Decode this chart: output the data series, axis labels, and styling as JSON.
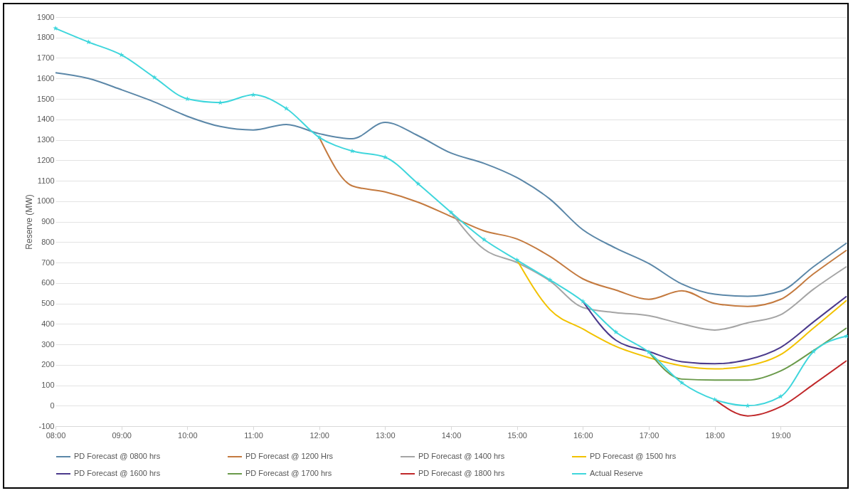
{
  "chart_data": {
    "type": "line",
    "ylabel": "Reserve (MW)",
    "xlim": [
      8,
      20
    ],
    "ylim": [
      -100,
      1900
    ],
    "xticks": [
      {
        "value": 8,
        "label": "08:00"
      },
      {
        "value": 9,
        "label": "09:00"
      },
      {
        "value": 10,
        "label": "10:00"
      },
      {
        "value": 11,
        "label": "11:00"
      },
      {
        "value": 12,
        "label": "12:00"
      },
      {
        "value": 13,
        "label": "13:00"
      },
      {
        "value": 14,
        "label": "14:00"
      },
      {
        "value": 15,
        "label": "15:00"
      },
      {
        "value": 16,
        "label": "16:00"
      },
      {
        "value": 17,
        "label": "17:00"
      },
      {
        "value": 18,
        "label": "18:00"
      },
      {
        "value": 19,
        "label": "19:00"
      }
    ],
    "yticks": [
      -100,
      0,
      100,
      200,
      300,
      400,
      500,
      600,
      700,
      800,
      900,
      1000,
      1100,
      1200,
      1300,
      1400,
      1500,
      1600,
      1700,
      1800,
      1900
    ],
    "grid": "y",
    "legend": "bottom",
    "marker": "none",
    "line_style": "solid",
    "series": [
      {
        "name": "PD Forecast @ 0800 hrs",
        "color": "#5b87a8",
        "x": [
          8,
          8.5,
          9,
          9.5,
          10,
          10.5,
          11,
          11.5,
          12,
          12.5,
          13,
          13.5,
          14,
          14.5,
          15,
          15.5,
          16,
          16.5,
          17,
          17.5,
          18,
          18.5,
          19,
          19.5,
          20
        ],
        "values": [
          1628,
          1600,
          1545,
          1485,
          1415,
          1365,
          1348,
          1375,
          1330,
          1305,
          1385,
          1320,
          1235,
          1185,
          1115,
          1010,
          860,
          770,
          695,
          595,
          545,
          535,
          560,
          680,
          795
        ]
      },
      {
        "name": "PD Forecast @ 1200 Hrs",
        "color": "#c47a3f",
        "x": [
          12,
          12.5,
          13,
          13.5,
          14,
          14.5,
          15,
          15.5,
          16,
          16.5,
          17,
          17.5,
          18,
          18.5,
          19,
          19.5,
          20
        ],
        "values": [
          1312,
          1075,
          1045,
          995,
          925,
          855,
          815,
          730,
          620,
          565,
          520,
          562,
          500,
          485,
          520,
          645,
          760
        ]
      },
      {
        "name": "PD Forecast @ 1400 hrs",
        "color": "#a5a5a5",
        "x": [
          14,
          14.5,
          15,
          15.5,
          16,
          16.5,
          17,
          17.5,
          18,
          18.5,
          19,
          19.5,
          20
        ],
        "values": [
          945,
          765,
          700,
          610,
          480,
          455,
          440,
          400,
          370,
          405,
          445,
          570,
          680
        ]
      },
      {
        "name": "PD Forecast @ 1500 hrs",
        "color": "#f2c200",
        "x": [
          15,
          15.5,
          16,
          16.5,
          17,
          17.5,
          18,
          18.5,
          19,
          19.5,
          20
        ],
        "values": [
          712,
          470,
          375,
          290,
          235,
          195,
          180,
          195,
          250,
          380,
          515
        ]
      },
      {
        "name": "PD Forecast @ 1600 hrs",
        "color": "#4b3a8c",
        "x": [
          16,
          16.5,
          17,
          17.5,
          18,
          18.5,
          19,
          19.5,
          20
        ],
        "values": [
          510,
          320,
          265,
          215,
          205,
          225,
          285,
          410,
          535
        ]
      },
      {
        "name": "PD Forecast @ 1700 hrs",
        "color": "#6a9a4a",
        "x": [
          17,
          17.5,
          18,
          18.5,
          19,
          19.5,
          20
        ],
        "values": [
          262,
          130,
          125,
          125,
          170,
          270,
          380
        ]
      },
      {
        "name": "PD Forecast @ 1800 hrs",
        "color": "#c0282a",
        "x": [
          18,
          18.5,
          19,
          19.5,
          20
        ],
        "values": [
          30,
          -50,
          -5,
          105,
          220
        ]
      },
      {
        "name": "Actual Reserve",
        "color": "#3fd6dc",
        "marker": "star",
        "x": [
          8,
          8.5,
          9,
          9.5,
          10,
          10.5,
          11,
          11.5,
          12,
          12.5,
          13,
          13.5,
          14,
          14.5,
          15,
          15.5,
          16,
          16.5,
          17,
          17.5,
          18,
          18.5,
          19,
          19.5,
          20
        ],
        "values": [
          1845,
          1778,
          1715,
          1605,
          1500,
          1482,
          1520,
          1453,
          1312,
          1245,
          1215,
          1085,
          945,
          812,
          712,
          615,
          510,
          360,
          262,
          112,
          30,
          0,
          45,
          265,
          340
        ]
      }
    ]
  }
}
